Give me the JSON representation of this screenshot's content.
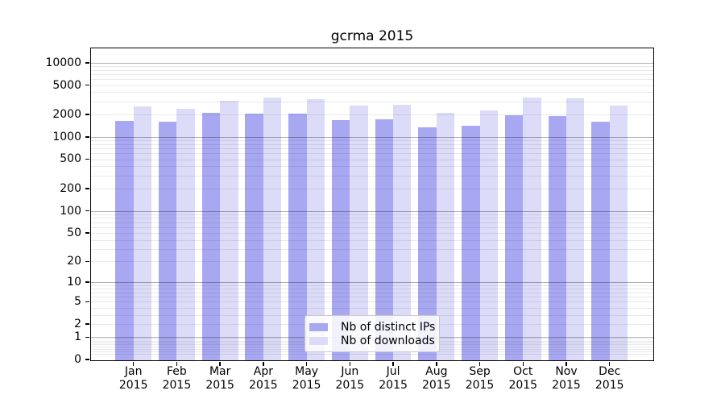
{
  "figure": {
    "title": "gcrma 2015"
  },
  "chart_data": {
    "type": "bar",
    "title": "gcrma 2015",
    "categories": [
      "Jan 2015",
      "Feb 2015",
      "Mar 2015",
      "Apr 2015",
      "May 2015",
      "Jun 2015",
      "Jul 2015",
      "Aug 2015",
      "Sep 2015",
      "Oct 2015",
      "Nov 2015",
      "Dec 2015"
    ],
    "series": [
      {
        "name": "Nb of distinct IPs",
        "color": "#a8a8f2",
        "values": [
          1690,
          1630,
          2190,
          2100,
          2100,
          1740,
          1760,
          1370,
          1440,
          1985,
          1960,
          1660
        ]
      },
      {
        "name": "Nb of downloads",
        "color": "#dcdcf9",
        "values": [
          2610,
          2460,
          3170,
          3440,
          3300,
          2680,
          2790,
          2150,
          2320,
          3440,
          3380,
          2680
        ]
      }
    ],
    "xlabel": "",
    "ylabel": "",
    "y_ticks": [
      0,
      1,
      2,
      5,
      10,
      20,
      50,
      100,
      200,
      500,
      1000,
      2000,
      5000,
      10000
    ],
    "y_scale": "log10(1+v)",
    "ylim": [
      0,
      15600
    ],
    "grid": true,
    "legend_position": "lower center"
  },
  "colors": {
    "major_grid": "#b3b3b3",
    "minor_grid": "#ebebeb",
    "spine": "#000000",
    "text": "#000000",
    "background": "#ffffff"
  }
}
